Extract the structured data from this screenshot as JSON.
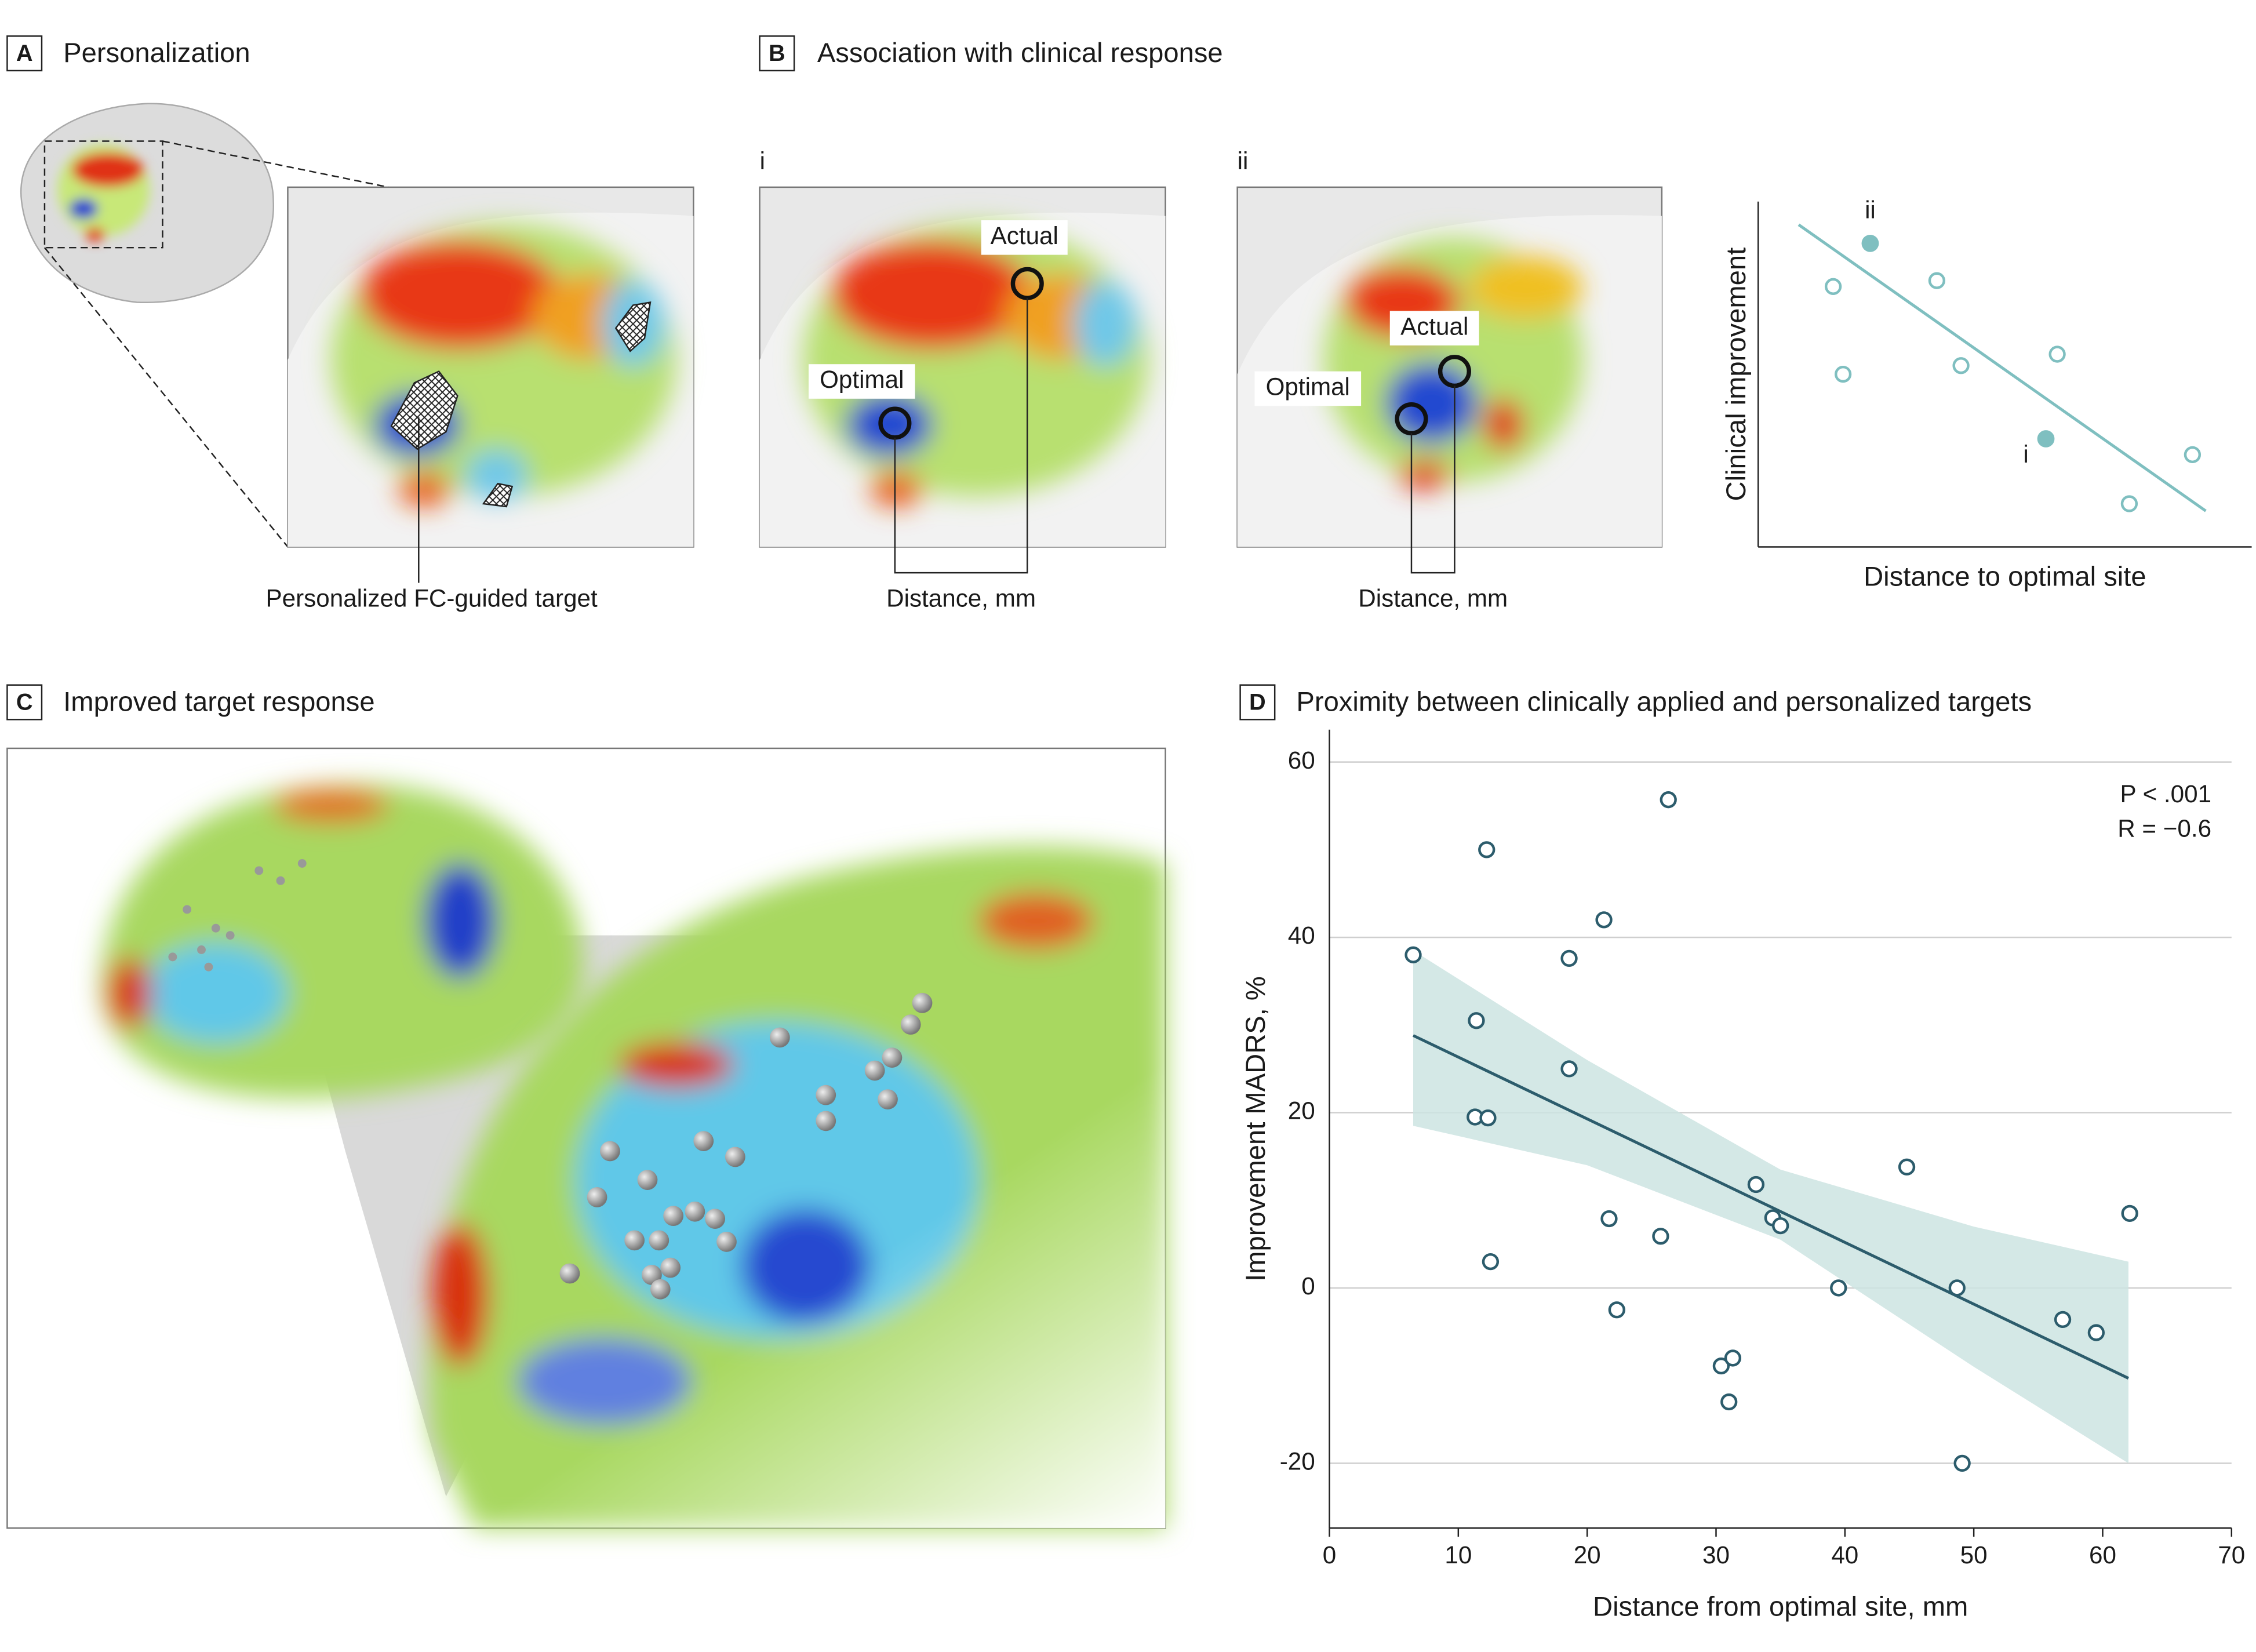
{
  "panels": {
    "a": {
      "letter": "A",
      "title": "Personalization",
      "target_label": "Personalized FC-guided target"
    },
    "b": {
      "letter": "B",
      "title": "Association with clinical response",
      "sub_i": "i",
      "sub_ii": "ii",
      "actual_label": "Actual",
      "optimal_label": "Optimal",
      "distance_label": "Distance, mm"
    },
    "c": {
      "letter": "C",
      "title": "Improved target response"
    },
    "d": {
      "letter": "D",
      "title": "Proximity between clinically applied and personalized targets"
    }
  },
  "chart_data": [
    {
      "type": "scatter",
      "xlabel": "Distance to optimal site",
      "ylabel": "Clinical improvement",
      "xlim": [
        0,
        100
      ],
      "ylim": [
        0,
        100
      ],
      "color": "#7fbfc0",
      "grid": false,
      "x": [
        15.2,
        36.2,
        17.2,
        41.1,
        60.6,
        75.2,
        88
      ],
      "y": [
        75.4,
        77.1,
        50,
        52.5,
        55.8,
        12.5,
        26.7
      ],
      "highlight": {
        "x": [
          22.7,
          58.3
        ],
        "y": [
          87.9,
          31.3
        ],
        "labels": [
          "ii",
          "i"
        ]
      },
      "trend": {
        "x": [
          8.2,
          90.7
        ],
        "y": [
          93.3,
          10.4
        ]
      }
    },
    {
      "type": "scatter",
      "xlabel": "Distance from optimal site, mm",
      "ylabel": "Improvement MADRS, %",
      "xlim": [
        0,
        70
      ],
      "ylim": [
        -27.4,
        63.7
      ],
      "xticks": [
        0,
        10,
        20,
        30,
        40,
        50,
        60,
        70
      ],
      "yticks": [
        -20,
        0,
        20,
        40,
        60
      ],
      "grid": true,
      "color": "#2c5c6c",
      "band_color": "#cde4e2",
      "x": [
        6.5,
        11.4,
        12.2,
        11.3,
        12.3,
        12.5,
        18.6,
        18.6,
        21.3,
        21.7,
        22.3,
        25.7,
        26.3,
        30.4,
        31.3,
        31.0,
        33.1,
        34.4,
        35.0,
        39.5,
        44.8,
        48.7,
        49.1,
        56.9,
        59.5,
        62.1
      ],
      "y": [
        38,
        30.5,
        50,
        19.5,
        19.4,
        3,
        37.6,
        25,
        42,
        7.9,
        -2.5,
        5.9,
        55.7,
        -8.9,
        -8,
        -13,
        11.8,
        8,
        7.1,
        0,
        13.8,
        0,
        -20,
        -3.6,
        -5.1,
        8.5
      ],
      "trend": {
        "x": [
          6.5,
          62
        ],
        "y": [
          28.8,
          -10.3
        ]
      },
      "band": {
        "x": [
          6.5,
          20,
          35,
          50,
          62
        ],
        "upper": [
          38.5,
          26,
          13.5,
          7,
          3
        ],
        "lower": [
          18.5,
          14,
          5.5,
          -9,
          -20
        ]
      },
      "annotations": [
        "P < .001",
        "R = −0.6"
      ]
    }
  ]
}
